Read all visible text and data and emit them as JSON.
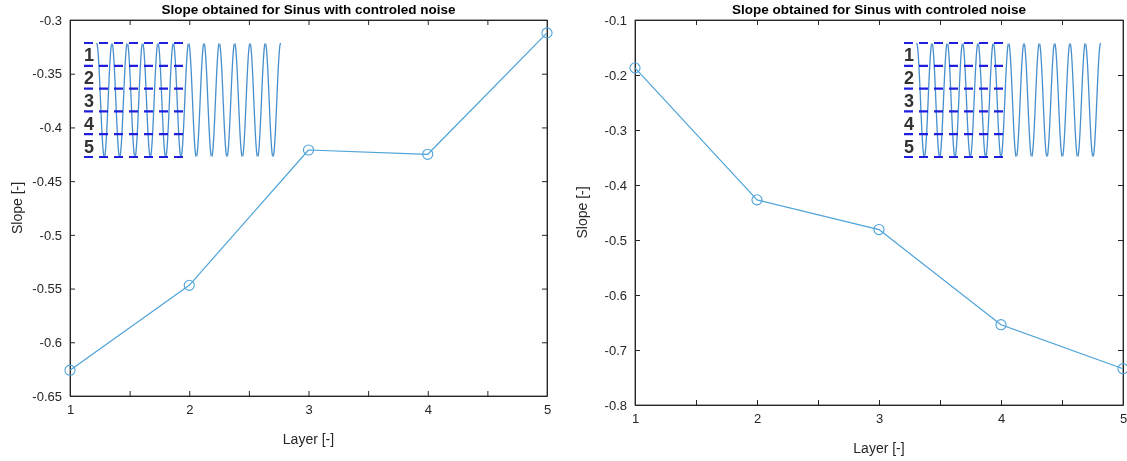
{
  "chart_data": [
    {
      "type": "line",
      "title": "Slope obtained for Sinus with controled noise",
      "xlabel": "Layer [-]",
      "ylabel": "Slope [-]",
      "x": [
        1,
        2,
        3,
        4,
        5
      ],
      "series": [
        {
          "color": "#4ea3d9",
          "values": [
            -0.626,
            -0.547,
            -0.421,
            -0.425,
            -0.312
          ]
        }
      ],
      "xlim": [
        1,
        5
      ],
      "xticks": [
        1,
        {
          "value": 1.5,
          "label": null
        },
        2,
        {
          "value": 2.5,
          "label": null
        },
        3,
        {
          "value": 3.5,
          "label": null
        },
        4,
        {
          "value": 4.5,
          "label": null
        },
        5
      ],
      "ylim": [
        -0.65,
        -0.3
      ],
      "yticks": [
        -0.65,
        -0.6,
        -0.55,
        -0.5,
        -0.45,
        -0.4,
        -0.35,
        -0.3
      ],
      "marker": "circle",
      "grid": false,
      "annotations": [
        "1",
        "2",
        "3",
        "4",
        "5"
      ]
    },
    {
      "type": "line",
      "title": "Slope obtained for Sinus with controled noise",
      "xlabel": "Layer [-]",
      "ylabel": "Slope [-]",
      "x": [
        1,
        2,
        3,
        4,
        5
      ],
      "series": [
        {
          "color": "#4ea3d9",
          "values": [
            -0.187,
            -0.427,
            -0.481,
            -0.654,
            -0.734
          ]
        }
      ],
      "xlim": [
        1,
        5
      ],
      "xticks": [
        1,
        {
          "value": 1.5,
          "label": null
        },
        2,
        {
          "value": 2.5,
          "label": null
        },
        3,
        {
          "value": 3.5,
          "label": null
        },
        4,
        {
          "value": 4.5,
          "label": null
        },
        5
      ],
      "ylim": [
        -0.8,
        -0.1
      ],
      "yticks": [
        -0.8,
        -0.7,
        -0.6,
        -0.5,
        -0.4,
        -0.3,
        -0.2,
        -0.1
      ],
      "marker": "circle",
      "grid": false,
      "annotations": [
        "1",
        "2",
        "3",
        "4",
        "5"
      ]
    }
  ]
}
